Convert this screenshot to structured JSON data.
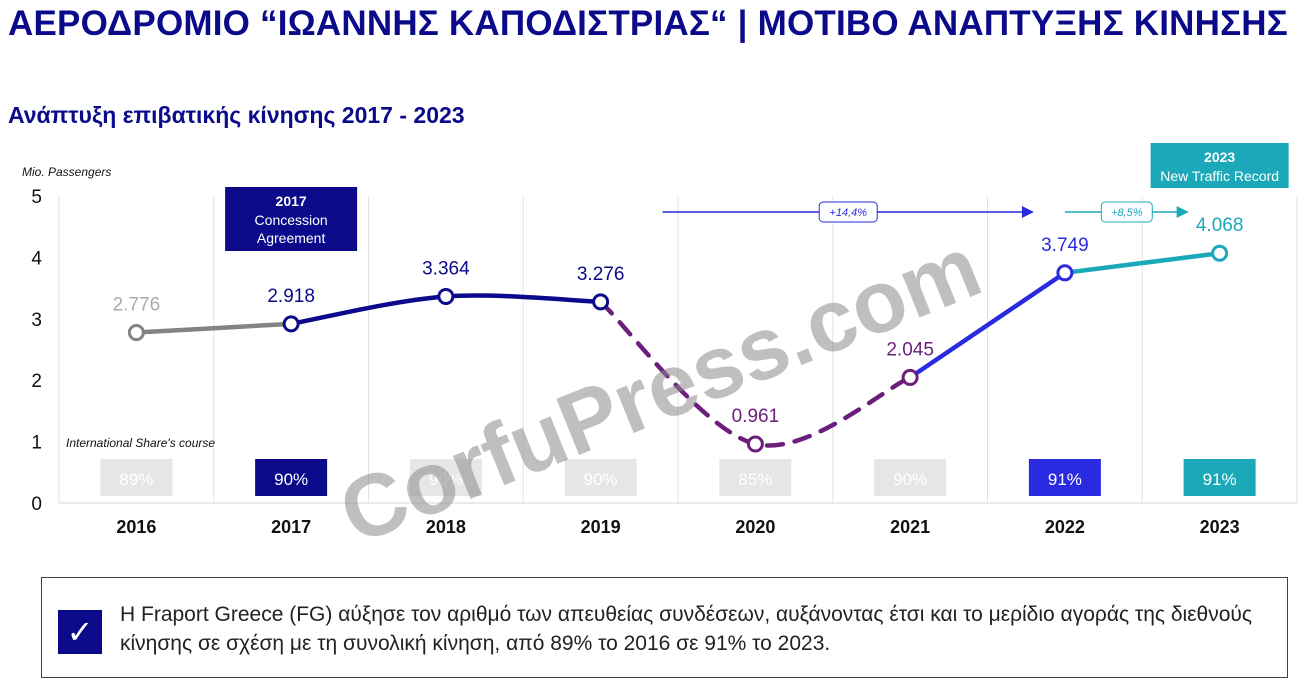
{
  "title": "ΑΕΡΟΔΡΟΜΙΟ “ΙΩΑΝΝΗΣ ΚΑΠΟΔΙΣΤΡΙΑΣ“ | ΜΟΤΙΒΟ ΑΝΑΠΤΥΞΗΣ ΚΙΝΗΣΗΣ",
  "subtitle": "Ανάπτυξη επιβατικής κίνησης 2017 - 2023",
  "watermark": "CorfuPress.com",
  "colors": {
    "navy": "#0a0a8a",
    "gray": "#838383",
    "purple": "#6b1f7b",
    "blue": "#2a2ae0",
    "teal": "#1ba8b8",
    "light_box": "#e6e6e6"
  },
  "chart_data": {
    "type": "line",
    "ylabel": "Mio. Passengers",
    "ylim": [
      0,
      5
    ],
    "yticks": [
      "0",
      "1",
      "2",
      "3",
      "4",
      "5"
    ],
    "categories": [
      "2016",
      "2017",
      "2018",
      "2019",
      "2020",
      "2021",
      "2022",
      "2023"
    ],
    "values": [
      2.776,
      2.918,
      3.364,
      3.276,
      0.961,
      2.045,
      3.749,
      4.068
    ],
    "value_labels": [
      "2.776",
      "2.918",
      "3.364",
      "3.276",
      "0.961",
      "2.045",
      "3.749",
      "4.068"
    ],
    "point_colors": [
      "gray",
      "navy",
      "navy",
      "navy",
      "purple",
      "purple",
      "blue",
      "teal"
    ],
    "segments": [
      {
        "from": 0,
        "to": 1,
        "color": "gray",
        "style": "solid"
      },
      {
        "from": 1,
        "to": 3,
        "color": "navy",
        "style": "solid"
      },
      {
        "from": 3,
        "to": 5,
        "color": "purple",
        "style": "dashed"
      },
      {
        "from": 5,
        "to": 6,
        "color": "blue",
        "style": "solid"
      },
      {
        "from": 6,
        "to": 7,
        "color": "teal",
        "style": "solid"
      }
    ],
    "share_label": "International Share's course",
    "international_share": [
      "89%",
      "90%",
      "90%",
      "90%",
      "85%",
      "90%",
      "91%",
      "91%"
    ],
    "share_colors": [
      "light_box",
      "navy",
      "light_box",
      "light_box",
      "light_box",
      "light_box",
      "blue",
      "teal"
    ],
    "growth_arrows": [
      {
        "from": 3.4,
        "to": 5.8,
        "label": "+14,4%",
        "color": "blue"
      },
      {
        "from": 6.0,
        "to": 6.8,
        "label": "+8,5%",
        "color": "teal"
      }
    ],
    "callouts": [
      {
        "category": 1,
        "title": "2017",
        "lines": [
          "Concession",
          "Agreement"
        ],
        "color": "navy"
      },
      {
        "category": 7,
        "title": "2023",
        "lines": [
          "New Traffic Record"
        ],
        "color": "teal"
      }
    ]
  },
  "note": {
    "text": "Η Fraport Greece (FG) αύξησε τον αριθμό των απευθείας συνδέσεων, αυξάνοντας έτσι και το μερίδιο αγοράς της διεθνούς κίνησης σε σχέση με τη συνολική κίνηση, από 89% το 2016 σε 91% το 2023.",
    "icon": "check-icon"
  }
}
